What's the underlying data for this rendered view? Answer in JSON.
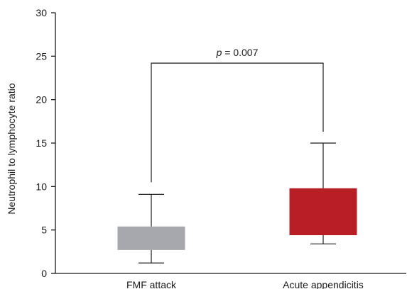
{
  "chart_data": {
    "type": "box",
    "ylabel": "Neutrophil to lymphocyte ratio",
    "ylim": [
      0,
      30
    ],
    "yticks": [
      0,
      5,
      10,
      15,
      20,
      25,
      30
    ],
    "yticklabels": [
      "0",
      "5",
      "10",
      "15",
      "20",
      "25",
      "30"
    ],
    "grid": false,
    "categories": [
      "FMF attack",
      "Acute appendicitis"
    ],
    "boxes": [
      {
        "category": "FMF attack",
        "min": 1.2,
        "q1": 2.7,
        "q3": 5.4,
        "max": 9.1,
        "color": "#a7a8ad"
      },
      {
        "category": "Acute appendicitis",
        "min": 3.4,
        "q1": 4.4,
        "q3": 9.8,
        "max": 15.0,
        "color": "#b81f25"
      }
    ],
    "annotation": {
      "p_symbol": "p",
      "p_rest": " = 0.007",
      "y": 24.2,
      "left_drop": 10.5,
      "right_drop": 16.3
    }
  }
}
